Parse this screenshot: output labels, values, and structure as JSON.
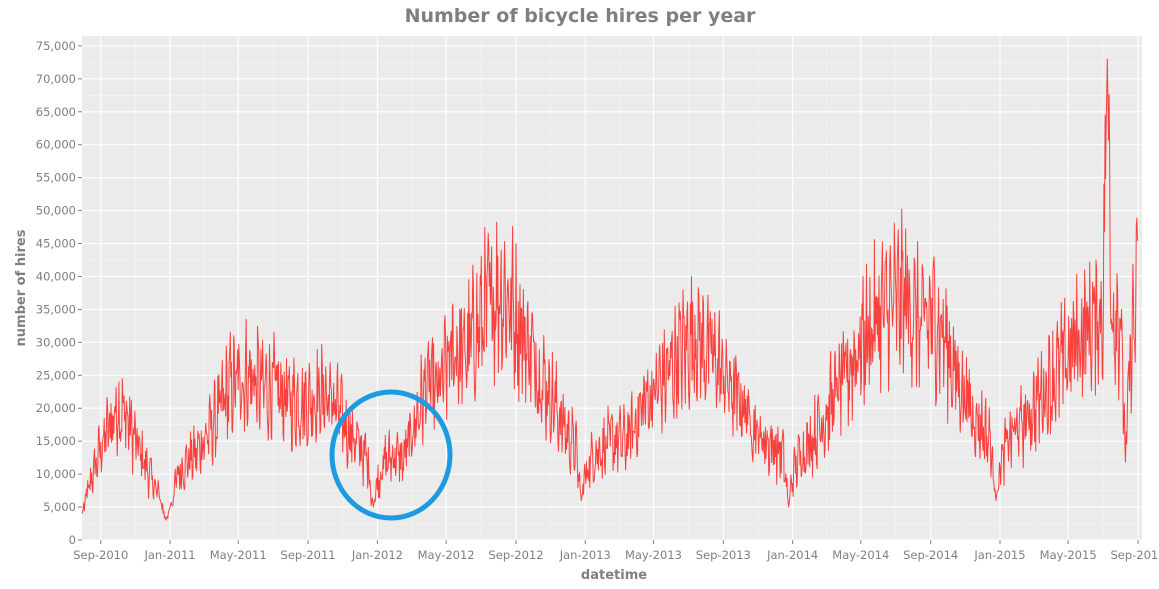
{
  "chart_data": {
    "type": "line",
    "title": "Number of bicycle hires per year",
    "xlabel": "datetime",
    "ylabel": "number of hires",
    "x_domain": [
      "2010-07-30",
      "2015-09-08"
    ],
    "ylim": [
      0,
      76500
    ],
    "x_ticks": [
      {
        "date": "2010-09-01",
        "label": "Sep-2010"
      },
      {
        "date": "2011-01-01",
        "label": "Jan-2011"
      },
      {
        "date": "2011-05-01",
        "label": "May-2011"
      },
      {
        "date": "2011-09-01",
        "label": "Sep-2011"
      },
      {
        "date": "2012-01-01",
        "label": "Jan-2012"
      },
      {
        "date": "2012-05-01",
        "label": "May-2012"
      },
      {
        "date": "2012-09-01",
        "label": "Sep-2012"
      },
      {
        "date": "2013-01-01",
        "label": "Jan-2013"
      },
      {
        "date": "2013-05-01",
        "label": "May-2013"
      },
      {
        "date": "2013-09-01",
        "label": "Sep-2013"
      },
      {
        "date": "2014-01-01",
        "label": "Jan-2014"
      },
      {
        "date": "2014-05-01",
        "label": "May-2014"
      },
      {
        "date": "2014-09-01",
        "label": "Sep-2014"
      },
      {
        "date": "2015-01-01",
        "label": "Jan-2015"
      },
      {
        "date": "2015-05-01",
        "label": "May-2015"
      },
      {
        "date": "2015-09-01",
        "label": "Sep-2015"
      }
    ],
    "y_ticks": [
      {
        "value": 0,
        "label": "0"
      },
      {
        "value": 5000,
        "label": "5,000"
      },
      {
        "value": 10000,
        "label": "10,000"
      },
      {
        "value": 15000,
        "label": "15,000"
      },
      {
        "value": 20000,
        "label": "20,000"
      },
      {
        "value": 25000,
        "label": "25,000"
      },
      {
        "value": 30000,
        "label": "30,000"
      },
      {
        "value": 35000,
        "label": "35,000"
      },
      {
        "value": 40000,
        "label": "40,000"
      },
      {
        "value": 45000,
        "label": "45,000"
      },
      {
        "value": 50000,
        "label": "50,000"
      },
      {
        "value": 55000,
        "label": "55,000"
      },
      {
        "value": 60000,
        "label": "60,000"
      },
      {
        "value": 65000,
        "label": "65,000"
      },
      {
        "value": 70000,
        "label": "70,000"
      },
      {
        "value": 75000,
        "label": "75,000"
      }
    ],
    "grid": true,
    "line_color": "#f8403d",
    "panel_color": "#ebebeb",
    "series": [
      {
        "points": [
          [
            "2010-07-30",
            4000
          ],
          [
            "2010-08-15",
            9000
          ],
          [
            "2010-09-01",
            14000
          ],
          [
            "2010-09-15",
            17000
          ],
          [
            "2010-10-01",
            20000
          ],
          [
            "2010-10-15",
            19000
          ],
          [
            "2010-11-01",
            15000
          ],
          [
            "2010-11-15",
            12000
          ],
          [
            "2010-12-01",
            9000
          ],
          [
            "2010-12-15",
            6000
          ],
          [
            "2010-12-25",
            3000
          ],
          [
            "2011-01-01",
            5000
          ],
          [
            "2011-01-15",
            10000
          ],
          [
            "2011-02-01",
            12000
          ],
          [
            "2011-02-15",
            13000
          ],
          [
            "2011-03-01",
            15000
          ],
          [
            "2011-03-15",
            17000
          ],
          [
            "2011-04-01",
            20000
          ],
          [
            "2011-04-15",
            23000
          ],
          [
            "2011-05-01",
            24000
          ],
          [
            "2011-05-15",
            25000
          ],
          [
            "2011-06-01",
            24000
          ],
          [
            "2011-06-15",
            23000
          ],
          [
            "2011-07-01",
            23000
          ],
          [
            "2011-07-15",
            22000
          ],
          [
            "2011-08-01",
            21000
          ],
          [
            "2011-08-15",
            21000
          ],
          [
            "2011-09-01",
            21000
          ],
          [
            "2011-09-15",
            22000
          ],
          [
            "2011-10-01",
            22000
          ],
          [
            "2011-10-15",
            21000
          ],
          [
            "2011-11-01",
            18000
          ],
          [
            "2011-11-15",
            16000
          ],
          [
            "2011-12-01",
            14000
          ],
          [
            "2011-12-15",
            12000
          ],
          [
            "2011-12-25",
            5000
          ],
          [
            "2012-01-01",
            9000
          ],
          [
            "2012-01-15",
            12000
          ],
          [
            "2012-02-01",
            13000
          ],
          [
            "2012-02-15",
            12000
          ],
          [
            "2012-03-01",
            16000
          ],
          [
            "2012-03-15",
            20000
          ],
          [
            "2012-04-01",
            24000
          ],
          [
            "2012-04-15",
            22000
          ],
          [
            "2012-05-01",
            26000
          ],
          [
            "2012-05-15",
            29000
          ],
          [
            "2012-06-01",
            28000
          ],
          [
            "2012-06-15",
            30000
          ],
          [
            "2012-07-01",
            33000
          ],
          [
            "2012-07-15",
            36000
          ],
          [
            "2012-08-01",
            38000
          ],
          [
            "2012-08-15",
            37000
          ],
          [
            "2012-09-01",
            34000
          ],
          [
            "2012-09-15",
            31000
          ],
          [
            "2012-10-01",
            28000
          ],
          [
            "2012-10-15",
            25000
          ],
          [
            "2012-11-01",
            22000
          ],
          [
            "2012-11-15",
            19000
          ],
          [
            "2012-12-01",
            16000
          ],
          [
            "2012-12-15",
            14000
          ],
          [
            "2012-12-25",
            6000
          ],
          [
            "2013-01-01",
            10000
          ],
          [
            "2013-01-15",
            13000
          ],
          [
            "2013-02-01",
            14000
          ],
          [
            "2013-02-15",
            15000
          ],
          [
            "2013-03-01",
            15000
          ],
          [
            "2013-03-15",
            15000
          ],
          [
            "2013-04-01",
            18000
          ],
          [
            "2013-04-15",
            21000
          ],
          [
            "2013-05-01",
            22000
          ],
          [
            "2013-05-15",
            24000
          ],
          [
            "2013-06-01",
            26000
          ],
          [
            "2013-06-15",
            28000
          ],
          [
            "2013-07-01",
            30000
          ],
          [
            "2013-07-15",
            31000
          ],
          [
            "2013-08-01",
            29000
          ],
          [
            "2013-08-15",
            28000
          ],
          [
            "2013-09-01",
            25000
          ],
          [
            "2013-09-15",
            23000
          ],
          [
            "2013-10-01",
            21000
          ],
          [
            "2013-10-15",
            19000
          ],
          [
            "2013-11-01",
            16000
          ],
          [
            "2013-11-15",
            15000
          ],
          [
            "2013-12-01",
            14000
          ],
          [
            "2013-12-15",
            13000
          ],
          [
            "2013-12-25",
            5000
          ],
          [
            "2014-01-01",
            10000
          ],
          [
            "2014-01-15",
            13000
          ],
          [
            "2014-02-01",
            15000
          ],
          [
            "2014-02-15",
            17000
          ],
          [
            "2014-03-01",
            19000
          ],
          [
            "2014-03-15",
            22000
          ],
          [
            "2014-04-01",
            24000
          ],
          [
            "2014-04-15",
            27000
          ],
          [
            "2014-05-01",
            30000
          ],
          [
            "2014-05-15",
            31000
          ],
          [
            "2014-06-01",
            34000
          ],
          [
            "2014-06-15",
            35000
          ],
          [
            "2014-07-01",
            36000
          ],
          [
            "2014-07-15",
            37000
          ],
          [
            "2014-08-01",
            35000
          ],
          [
            "2014-08-15",
            32000
          ],
          [
            "2014-09-01",
            34000
          ],
          [
            "2014-09-15",
            33000
          ],
          [
            "2014-10-01",
            29000
          ],
          [
            "2014-10-15",
            25000
          ],
          [
            "2014-11-01",
            22000
          ],
          [
            "2014-11-15",
            19000
          ],
          [
            "2014-12-01",
            17000
          ],
          [
            "2014-12-15",
            15000
          ],
          [
            "2014-12-25",
            6000
          ],
          [
            "2015-01-01",
            11000
          ],
          [
            "2015-01-15",
            15000
          ],
          [
            "2015-02-01",
            17000
          ],
          [
            "2015-02-15",
            18000
          ],
          [
            "2015-03-01",
            20000
          ],
          [
            "2015-03-15",
            22000
          ],
          [
            "2015-04-01",
            24000
          ],
          [
            "2015-04-15",
            26000
          ],
          [
            "2015-05-01",
            28000
          ],
          [
            "2015-05-15",
            30000
          ],
          [
            "2015-06-01",
            32000
          ],
          [
            "2015-06-15",
            33000
          ],
          [
            "2015-07-01",
            35000
          ],
          [
            "2015-07-09",
            73000
          ],
          [
            "2015-07-15",
            36000
          ],
          [
            "2015-08-01",
            34000
          ],
          [
            "2015-08-10",
            12000
          ],
          [
            "2015-08-20",
            30000
          ],
          [
            "2015-08-31",
            37000
          ]
        ]
      }
    ]
  }
}
